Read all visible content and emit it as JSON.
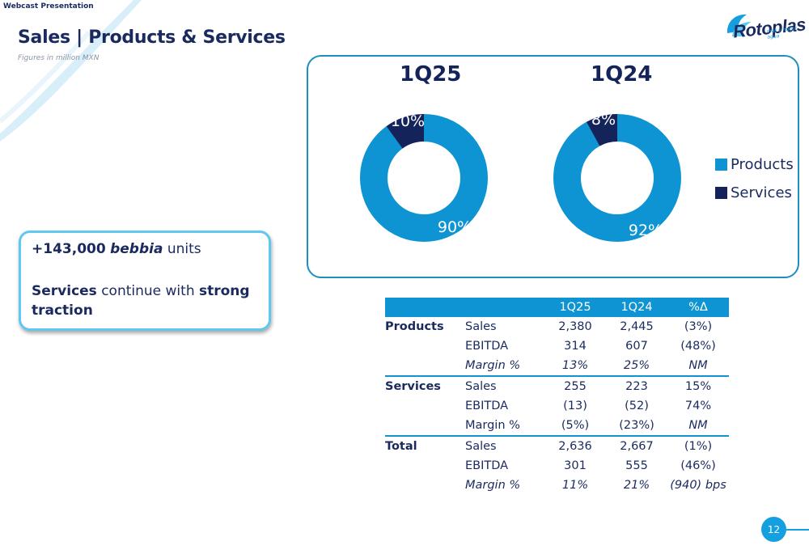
{
  "header": {
    "section_label": "Webcast Presentation",
    "title": "Sales | Products & Services",
    "subtitle": "Figures in million MXN"
  },
  "brand": {
    "logo_text": "Rotoplas",
    "logo_tagline": "más y mejor agua",
    "colors": {
      "navy": "#14245a",
      "blue": "#0e94d2",
      "light_blue": "#5ec8f0"
    }
  },
  "chart_data": [
    {
      "type": "pie",
      "title": "1Q25",
      "categories": [
        "Products",
        "Services"
      ],
      "values": [
        90,
        10
      ],
      "labels": [
        "90%",
        "10%"
      ],
      "colors": [
        "#0e94d2",
        "#14245a"
      ],
      "legend": "right"
    },
    {
      "type": "pie",
      "title": "1Q24",
      "categories": [
        "Products",
        "Services"
      ],
      "values": [
        92,
        8
      ],
      "labels": [
        "92%",
        "8%"
      ],
      "colors": [
        "#0e94d2",
        "#14245a"
      ],
      "legend": "right"
    }
  ],
  "legend": [
    {
      "label": "Products",
      "color": "#0e94d2"
    },
    {
      "label": "Services",
      "color": "#14245a"
    }
  ],
  "highlights": {
    "units_number": "+143,000",
    "units_brand": "bebbia",
    "units_suffix": "units",
    "traction_lead": "Services",
    "traction_middle": "continue with",
    "traction_bold": "strong traction"
  },
  "table": {
    "headers": [
      "",
      "",
      "1Q25",
      "1Q24",
      "%Δ"
    ],
    "groups": [
      {
        "name": "Products",
        "rows": [
          {
            "metric": "Sales",
            "q25": "2,380",
            "q24": "2,445",
            "delta": "(3%)"
          },
          {
            "metric": "EBITDA",
            "q25": "314",
            "q24": "607",
            "delta": "(48%)"
          },
          {
            "metric": "Margin %",
            "q25": "13%",
            "q24": "25%",
            "delta": "NM"
          }
        ]
      },
      {
        "name": "Services",
        "rows": [
          {
            "metric": "Sales",
            "q25": "255",
            "q24": "223",
            "delta": "15%"
          },
          {
            "metric": "EBITDA",
            "q25": "(13)",
            "q24": "(52)",
            "delta": "74%"
          },
          {
            "metric": "Margin %",
            "q25": "(5%)",
            "q24": "(23%)",
            "delta": "NM"
          }
        ]
      },
      {
        "name": "Total",
        "rows": [
          {
            "metric": "Sales",
            "q25": "2,636",
            "q24": "2,667",
            "delta": "(1%)"
          },
          {
            "metric": "EBITDA",
            "q25": "301",
            "q24": "555",
            "delta": "(46%)"
          },
          {
            "metric": "Margin %",
            "q25": "11%",
            "q24": "21%",
            "delta": "(940) bps"
          }
        ]
      }
    ]
  },
  "footer": {
    "page_number": "12"
  }
}
